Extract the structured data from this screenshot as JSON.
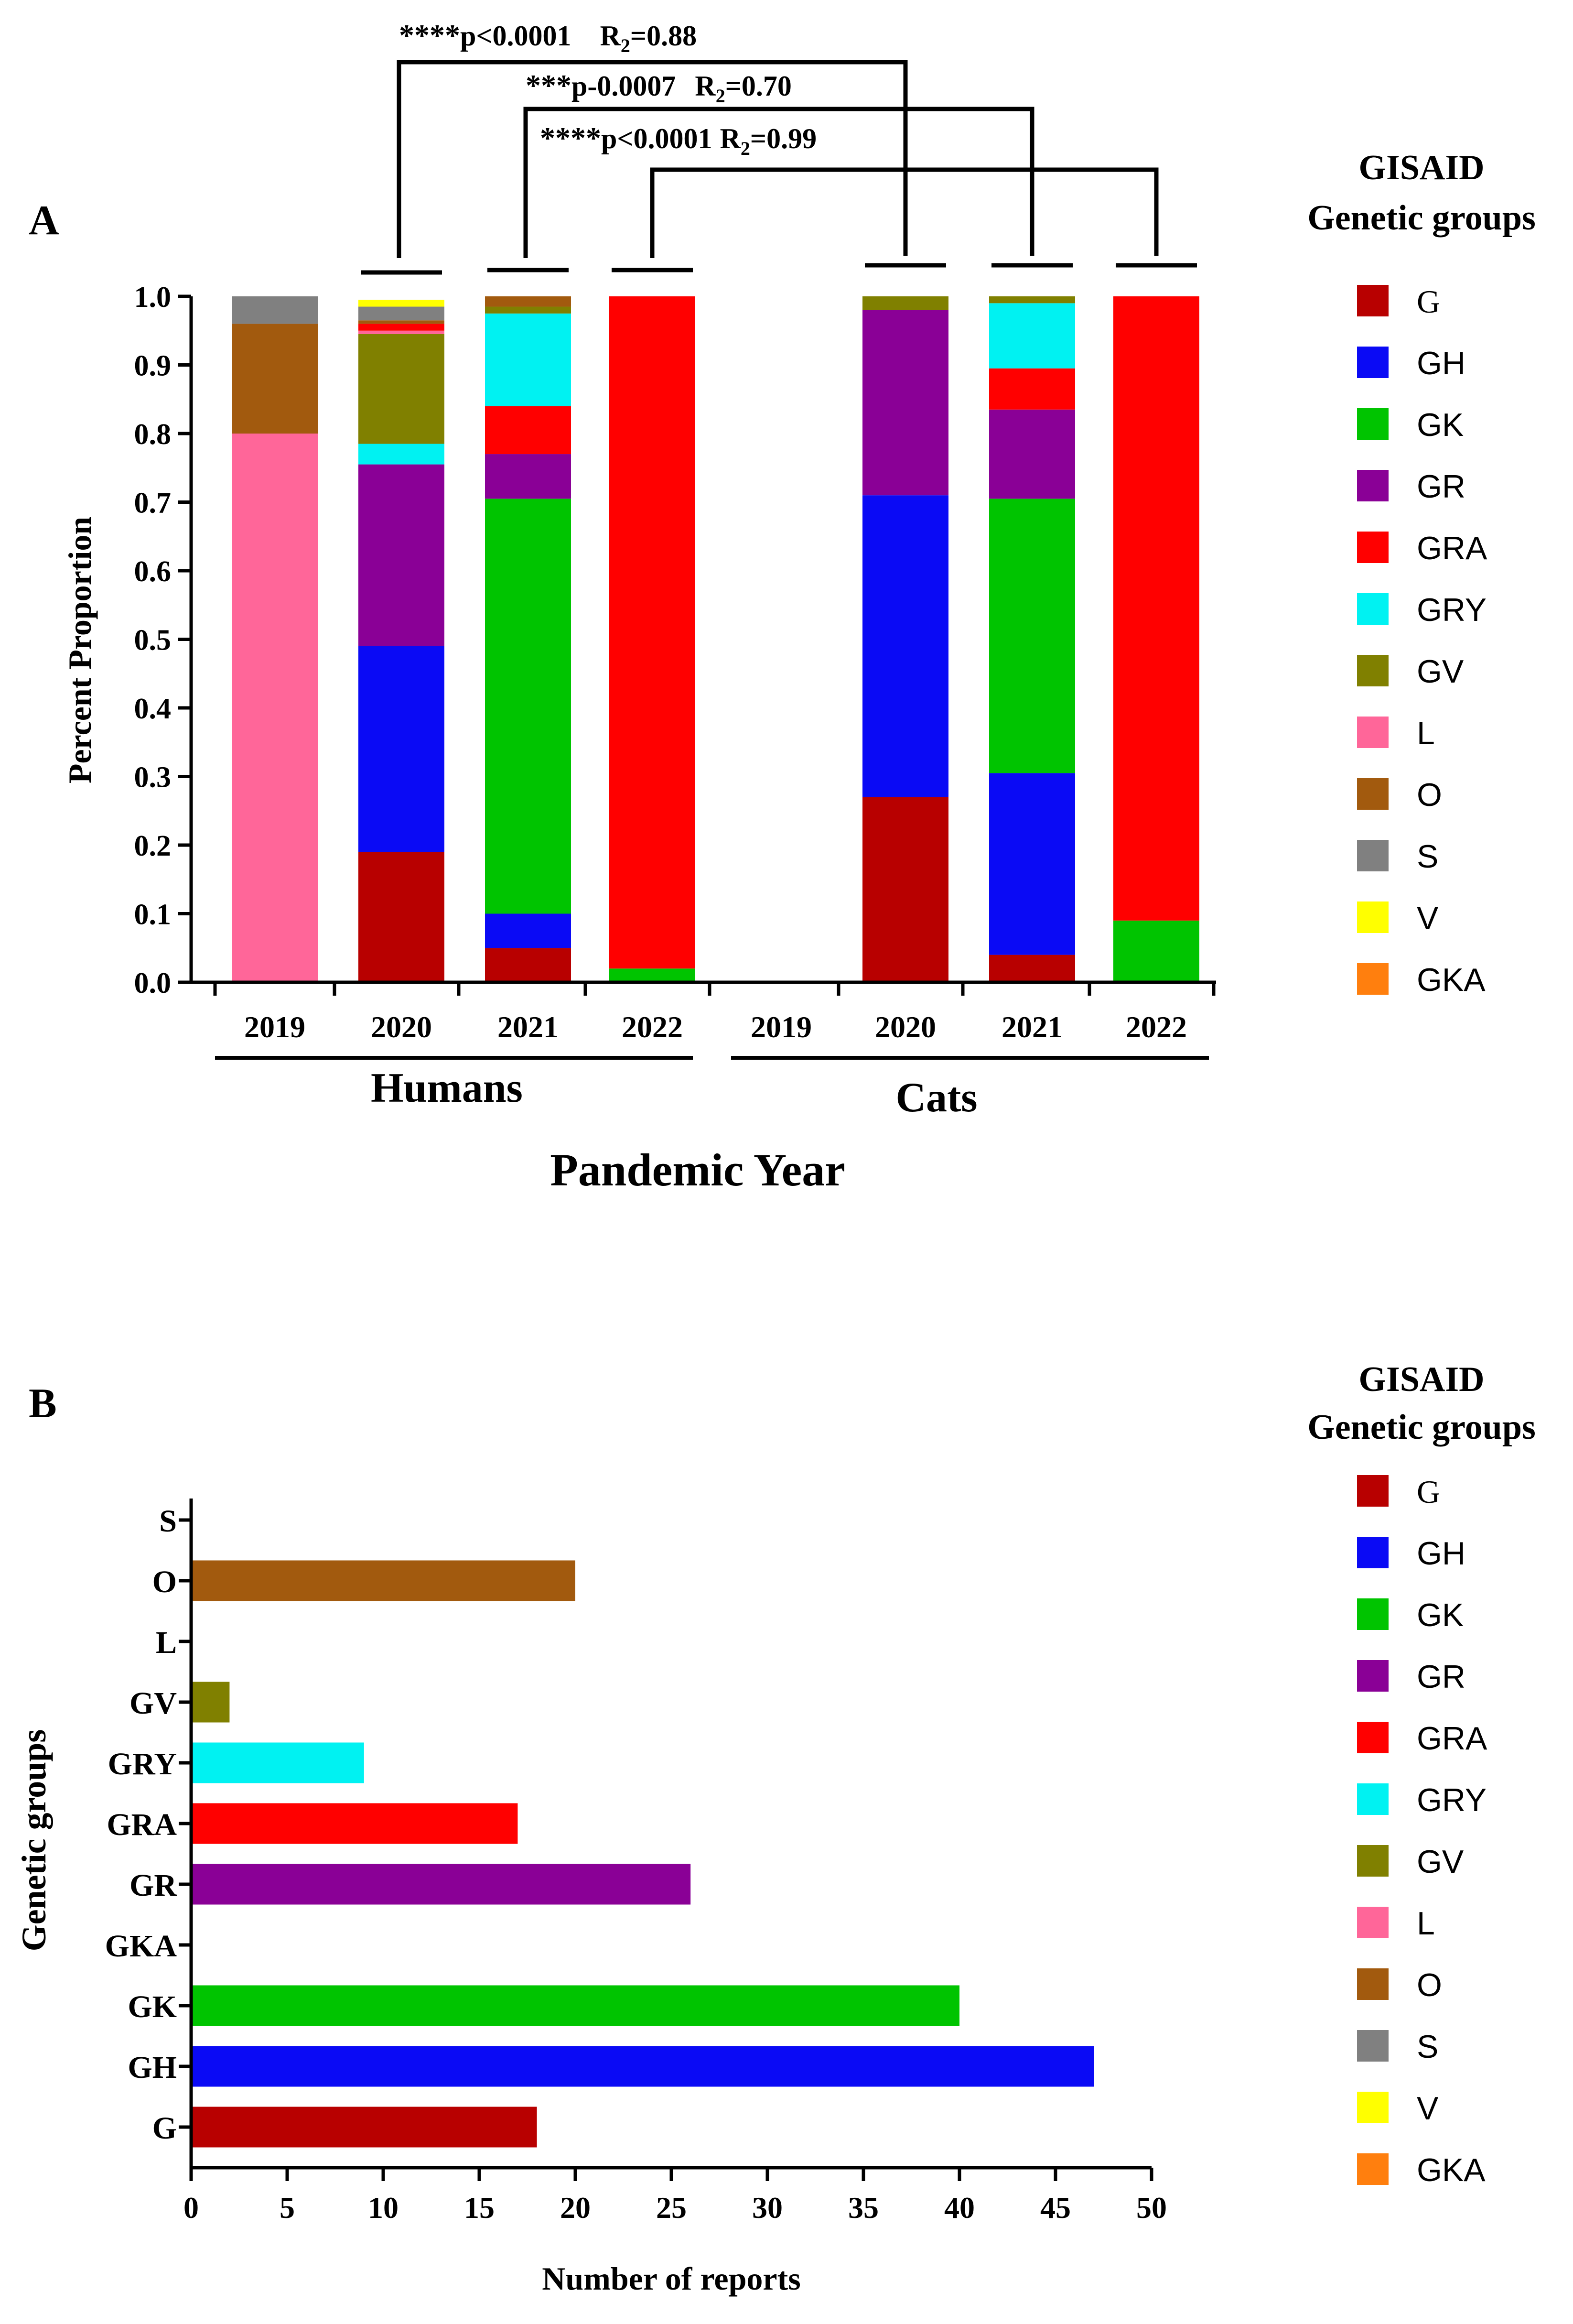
{
  "colors": {
    "G": "#b80000",
    "GH": "#0a0af5",
    "GK": "#00c400",
    "GR": "#8a0096",
    "GRA": "#ff0000",
    "GRY": "#00f2f2",
    "GV": "#808000",
    "L": "#ff6699",
    "O": "#a25a0e",
    "S": "#808080",
    "V": "#ffff00",
    "GKA": "#ff7f0e"
  },
  "legend": {
    "title_line1": "GISAID",
    "title_line2": "Genetic groups",
    "items": [
      "G",
      "GH",
      "GK",
      "GR",
      "GRA",
      "GRY",
      "GV",
      "L",
      "O",
      "S",
      "V",
      "GKA"
    ]
  },
  "panel_a": {
    "label": "A",
    "ylabel": "Percent Proportion",
    "xlabel": "Pandemic Year",
    "group_humans": "Humans",
    "group_cats": "Cats",
    "yticks": [
      "0.0",
      "0.1",
      "0.2",
      "0.3",
      "0.4",
      "0.5",
      "0.6",
      "0.7",
      "0.8",
      "0.9",
      "1.0"
    ],
    "sig": [
      {
        "stars": "****",
        "p": "p<0.0001",
        "r": "R",
        "sub": "2",
        "val": "=0.88"
      },
      {
        "stars": "***",
        "p": "p-0.0007",
        "r": "R",
        "sub": "2",
        "val": "=0.70"
      },
      {
        "stars": "****",
        "p": "p<0.0001",
        "r": "R",
        "sub": "2",
        "val": "=0.99"
      }
    ]
  },
  "panel_b": {
    "label": "B",
    "ylabel": "Genetic groups",
    "xlabel": "Number of reports",
    "xticks": [
      "0",
      "5",
      "10",
      "15",
      "20",
      "25",
      "30",
      "35",
      "40",
      "45",
      "50"
    ]
  },
  "chart_data": [
    {
      "type": "bar",
      "stacked": true,
      "title": "",
      "xlabel": "Pandemic Year",
      "ylabel": "Percent Proportion",
      "ylim": [
        0,
        1.0
      ],
      "groups": [
        "Humans",
        "Cats"
      ],
      "categories": [
        "2019",
        "2020",
        "2021",
        "2022",
        "2019",
        "2020",
        "2021",
        "2022"
      ],
      "category_group": [
        "Humans",
        "Humans",
        "Humans",
        "Humans",
        "Cats",
        "Cats",
        "Cats",
        "Cats"
      ],
      "stacks": [
        [
          {
            "g": "L",
            "v": 0.8
          },
          {
            "g": "O",
            "v": 0.16
          },
          {
            "g": "S",
            "v": 0.04
          }
        ],
        [
          {
            "g": "G",
            "v": 0.19
          },
          {
            "g": "GH",
            "v": 0.3
          },
          {
            "g": "GR",
            "v": 0.265
          },
          {
            "g": "GRY",
            "v": 0.03
          },
          {
            "g": "GV",
            "v": 0.16
          },
          {
            "g": "L",
            "v": 0.005
          },
          {
            "g": "GRA",
            "v": 0.01
          },
          {
            "g": "O",
            "v": 0.005
          },
          {
            "g": "S",
            "v": 0.02
          },
          {
            "g": "V",
            "v": 0.01
          }
        ],
        [
          {
            "g": "G",
            "v": 0.05
          },
          {
            "g": "GH",
            "v": 0.05
          },
          {
            "g": "GK",
            "v": 0.605
          },
          {
            "g": "GR",
            "v": 0.065
          },
          {
            "g": "GRA",
            "v": 0.07
          },
          {
            "g": "GRY",
            "v": 0.135
          },
          {
            "g": "GV",
            "v": 0.01
          },
          {
            "g": "O",
            "v": 0.015
          }
        ],
        [
          {
            "g": "GK",
            "v": 0.02
          },
          {
            "g": "GRA",
            "v": 0.98
          }
        ],
        [],
        [
          {
            "g": "G",
            "v": 0.27
          },
          {
            "g": "GH",
            "v": 0.44
          },
          {
            "g": "GR",
            "v": 0.27
          },
          {
            "g": "GV",
            "v": 0.02
          }
        ],
        [
          {
            "g": "G",
            "v": 0.04
          },
          {
            "g": "GH",
            "v": 0.265
          },
          {
            "g": "GK",
            "v": 0.4
          },
          {
            "g": "GR",
            "v": 0.13
          },
          {
            "g": "GRA",
            "v": 0.06
          },
          {
            "g": "GRY",
            "v": 0.095
          },
          {
            "g": "GV",
            "v": 0.01
          }
        ],
        [
          {
            "g": "GK",
            "v": 0.09
          },
          {
            "g": "GRA",
            "v": 0.91
          }
        ]
      ],
      "significance": [
        {
          "from": "2020 Humans",
          "to": "2020 Cats",
          "label": "****p<0.0001 R2=0.88"
        },
        {
          "from": "2021 Humans",
          "to": "2021 Cats",
          "label": "***p-0.0007 R2=0.70"
        },
        {
          "from": "2022 Humans",
          "to": "2022 Cats",
          "label": "****p<0.0001 R2=0.99"
        }
      ],
      "legend_title": "GISAID Genetic groups",
      "legend": [
        "G",
        "GH",
        "GK",
        "GR",
        "GRA",
        "GRY",
        "GV",
        "L",
        "O",
        "S",
        "V",
        "GKA"
      ]
    },
    {
      "type": "bar",
      "orientation": "horizontal",
      "title": "",
      "xlabel": "Number of reports",
      "ylabel": "Genetic groups",
      "xlim": [
        0,
        50
      ],
      "categories": [
        "S",
        "O",
        "L",
        "GV",
        "GRY",
        "GRA",
        "GR",
        "GKA",
        "GK",
        "GH",
        "G"
      ],
      "values": [
        0,
        20,
        0,
        2,
        9,
        17,
        26,
        0,
        40,
        47,
        18
      ],
      "legend_title": "GISAID Genetic groups",
      "legend": [
        "G",
        "GH",
        "GK",
        "GR",
        "GRA",
        "GRY",
        "GV",
        "L",
        "O",
        "S",
        "V",
        "GKA"
      ]
    }
  ]
}
